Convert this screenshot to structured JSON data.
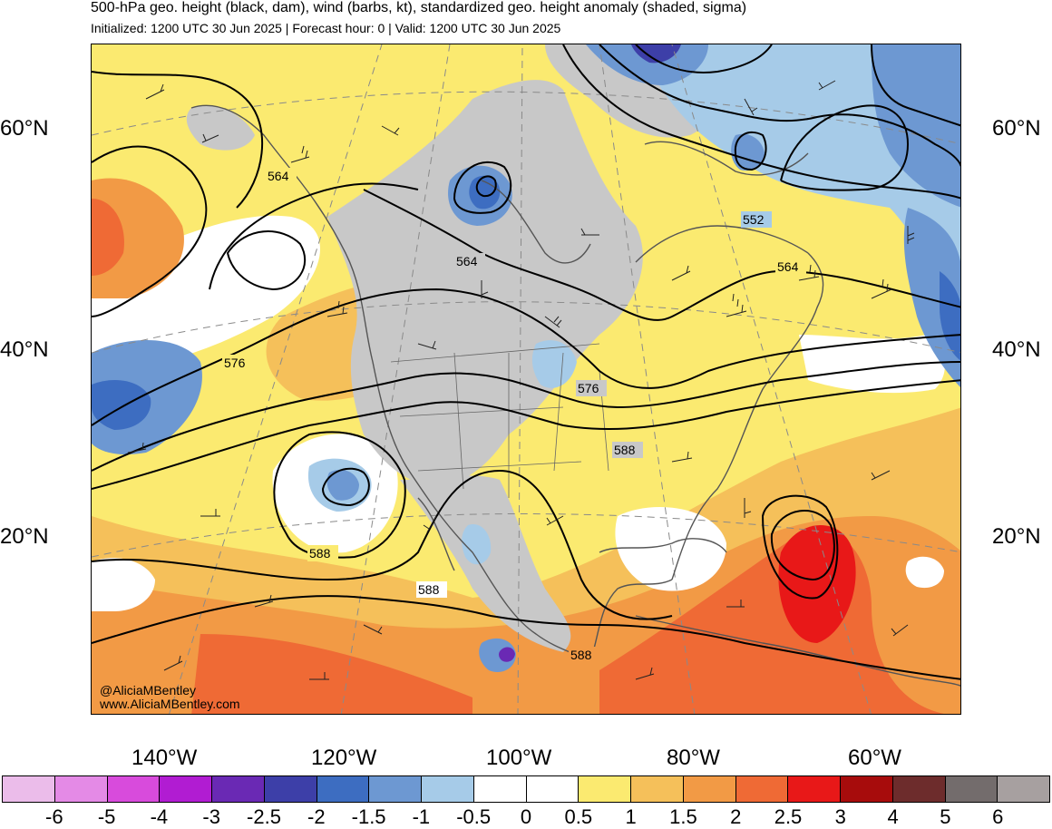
{
  "header": {
    "title": "500-hPa geo. height (black, dam), wind (barbs, kt), standardized geo. height anomaly (shaded, sigma)",
    "subtitle": "Initialized: 1200 UTC 30 Jun 2025 | Forecast hour: 0 | Valid: 1200 UTC 30 Jun 2025"
  },
  "lat_labels": [
    "60°N",
    "40°N",
    "20°N"
  ],
  "lon_labels": [
    "140°W",
    "120°W",
    "100°W",
    "80°W",
    "60°W"
  ],
  "contour_labels": [
    "564",
    "564",
    "552",
    "564",
    "576",
    "576",
    "588",
    "588",
    "588",
    "588"
  ],
  "credits": {
    "twitter": "@AliciaMBentley",
    "website": "www.AliciaMBentley.com"
  },
  "colorbar": {
    "labels": [
      "-6",
      "-5",
      "-4",
      "-3",
      "-2.5",
      "-2",
      "-1.5",
      "-1",
      "-0.5",
      "0",
      "0.5",
      "1",
      "1.5",
      "2",
      "2.5",
      "3",
      "4",
      "5",
      "6"
    ],
    "colors": [
      "#ebbcea",
      "#e48ae6",
      "#d84bdc",
      "#b11cd2",
      "#6a29b4",
      "#3d3fa8",
      "#3d6dc1",
      "#6d98d2",
      "#a6cbe8",
      "#ffffff",
      "#ffffff",
      "#fbea70",
      "#f5c05a",
      "#f29a45",
      "#ef6a35",
      "#e81818",
      "#a70c0c",
      "#6d2c2c",
      "#736c6c",
      "#a7a0a0"
    ]
  },
  "colors": {
    "land_gray": "#c8c8c8",
    "contour": "#000000",
    "coast": "#555555"
  }
}
